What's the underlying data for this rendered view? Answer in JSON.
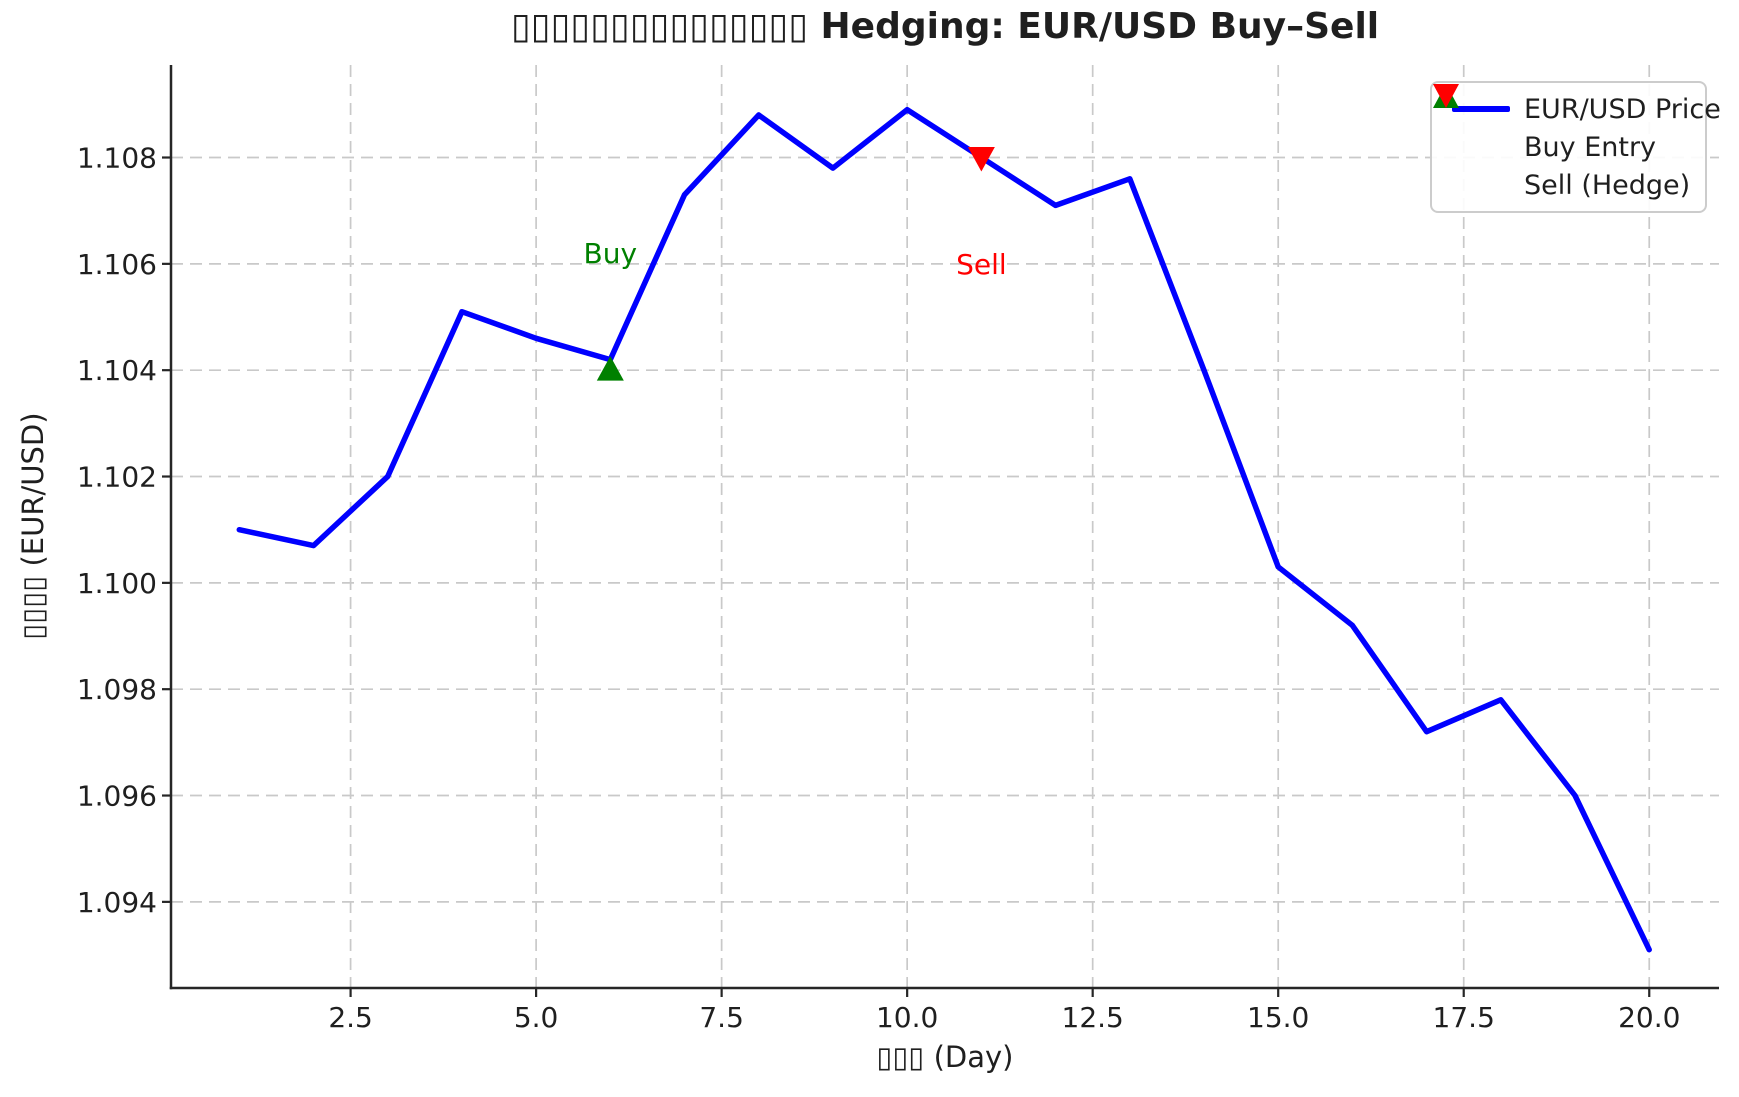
{
  "colors": {
    "price_line": "#0000ff",
    "buy": "#008000",
    "sell": "#ff0000",
    "grid": "#c9c9c9",
    "axis": "#262626",
    "text": "#1f1f1f",
    "legend_border": "#cccccc"
  },
  "chart_data": {
    "type": "line",
    "title": "▯▯▯▯▯▯▯▯▯▯▯▯▯▯▯ Hedging: EUR/USD Buy–Sell",
    "xlabel": "▯▯▯ (Day)",
    "ylabel": "▯▯▯▯ (EUR/USD)",
    "x": [
      1,
      2,
      3,
      4,
      5,
      6,
      7,
      8,
      9,
      10,
      11,
      12,
      13,
      14,
      15,
      16,
      17,
      18,
      19,
      20
    ],
    "series": [
      {
        "name": "EUR/USD Price",
        "color": "#0000ff",
        "values": [
          1.101,
          1.1007,
          1.102,
          1.1051,
          1.1046,
          1.1042,
          1.1073,
          1.1088,
          1.1078,
          1.1089,
          1.108,
          1.1071,
          1.1076,
          1.104,
          1.1003,
          1.0992,
          1.0972,
          1.0978,
          1.096,
          1.0931
        ]
      }
    ],
    "markers": [
      {
        "name": "Buy Entry",
        "shape": "triangle-up",
        "color": "#008000",
        "x": 6,
        "y": 1.104
      },
      {
        "name": "Sell (Hedge)",
        "shape": "triangle-down",
        "color": "#ff0000",
        "x": 11,
        "y": 1.108
      }
    ],
    "annotations": [
      {
        "text": "Buy",
        "x": 6,
        "y": 1.1062,
        "color": "#008000"
      },
      {
        "text": "Sell",
        "x": 11,
        "y": 1.106,
        "color": "#ff0000"
      }
    ],
    "xticks": [
      2.5,
      5.0,
      7.5,
      10.0,
      12.5,
      15.0,
      17.5,
      20.0
    ],
    "xtick_labels": [
      "2.5",
      "5.0",
      "7.5",
      "10.0",
      "12.5",
      "15.0",
      "17.5",
      "20.0"
    ],
    "yticks": [
      1.094,
      1.096,
      1.098,
      1.1,
      1.102,
      1.104,
      1.106,
      1.108
    ],
    "ytick_labels": [
      "1.094",
      "1.096",
      "1.098",
      "1.100",
      "1.102",
      "1.104",
      "1.106",
      "1.108"
    ],
    "xlim": [
      0.08,
      20.94
    ],
    "ylim": [
      1.09238,
      1.10974
    ],
    "grid": true,
    "legend": {
      "position": "upper right",
      "entries": [
        {
          "label": "EUR/USD Price",
          "swatch": "line",
          "color": "#0000ff"
        },
        {
          "label": "Buy Entry",
          "swatch": "triangle-up",
          "color": "#008000"
        },
        {
          "label": "Sell (Hedge)",
          "swatch": "triangle-down",
          "color": "#ff0000"
        }
      ]
    }
  }
}
